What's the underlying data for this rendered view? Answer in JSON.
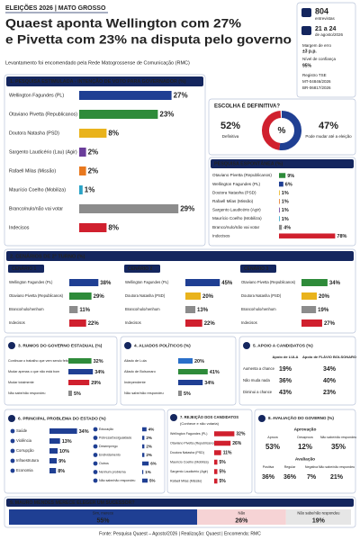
{
  "header": {
    "tag": "ELEIÇÕES 2026 | MATO GROSSO",
    "title_lines": [
      "Quaest aponta Wellington com 27%",
      "e Pivetta com 23% na disputa pelo governo"
    ],
    "subtitle": "Levantamento foi encomendado pela Rede Matogrossense de Comunicação (RMC)"
  },
  "sidebar": {
    "interviews": "804",
    "interviews_label": "entrevistas",
    "dates": "21 a 24",
    "dates_label": "de agosto/2026",
    "margin_label": "Margem de erro",
    "margin": "±3 p.p.",
    "confidence_label": "Nível de confiança",
    "confidence": "95%",
    "registry_label": "Registro TSE",
    "registry": [
      "MT-04846/2026",
      "BR-06817/2026"
    ]
  },
  "estimulada": {
    "title": "1. PESQUISA ESTIMULADA - INTENÇÃO DE VOTO PARA GOVERNADOR (%)",
    "items": [
      {
        "name": "Wellington Fagundes (PL)",
        "value": 27,
        "label": "27%",
        "color": "#1f3f93"
      },
      {
        "name": "Otaviano Pivetta (Republicanos)",
        "value": 23,
        "label": "23%",
        "color": "#2e8b3a"
      },
      {
        "name": "Doutora Natasha (PSD)",
        "value": 8,
        "label": "8%",
        "color": "#e9b31c"
      },
      {
        "name": "Sargento Laudicério (Lau) (Agir)",
        "value": 2,
        "label": "2%",
        "color": "#6a3d9a"
      },
      {
        "name": "Rafaell Milas (Missão)",
        "value": 2,
        "label": "2%",
        "color": "#e8781e"
      },
      {
        "name": "Maurício Coelho (Mobiliza)",
        "value": 1,
        "label": "1%",
        "color": "#2aa3c6"
      },
      {
        "name": "Branco/nulo/não vai votar",
        "value": 29,
        "label": "29%",
        "color": "#8c8c8c"
      },
      {
        "name": "Indecisos",
        "value": 8,
        "label": "8%",
        "color": "#d0202e"
      }
    ]
  },
  "definitiva": {
    "title": "ESCOLHA É DEFINITIVA?",
    "center": "%",
    "items": [
      {
        "name": "Definitiva",
        "value": 52,
        "label": "52%",
        "color": "#1f3f93"
      },
      {
        "name": "Pode mudar até a eleição",
        "value": 47,
        "label": "47%",
        "color": "#d0202e"
      }
    ]
  },
  "espontanea": {
    "title": "PESQUISA ESPONTÂNEA (%)",
    "items": [
      {
        "name": "Otaviano Pivetta (Republicanos)",
        "value": 9,
        "label": "9%",
        "color": "#2e8b3a"
      },
      {
        "name": "Wellington Fagundes (PL)",
        "value": 6,
        "label": "6%",
        "color": "#1f3f93"
      },
      {
        "name": "Doutora Natasha (PSD)",
        "value": 1,
        "label": "1%",
        "color": "#e9b31c"
      },
      {
        "name": "Rafaell Milas (Missão)",
        "value": 1,
        "label": "1%",
        "color": "#e8781e"
      },
      {
        "name": "Sargento Laudicério (Agir)",
        "value": 1,
        "label": "1%",
        "color": "#6a3d9a"
      },
      {
        "name": "Maurício Coelho (Mobiliza)",
        "value": 1,
        "label": "1%",
        "color": "#2aa3c6"
      },
      {
        "name": "Branco/nulo/não vai votar",
        "value": 4,
        "label": "4%",
        "color": "#8c8c8c"
      },
      {
        "name": "Indecisos",
        "value": 78,
        "label": "78%",
        "color": "#d0202e"
      }
    ]
  },
  "segundo_turno": {
    "title": "2. CENÁRIOS DE 2º TURNO (%)",
    "scenarios": [
      {
        "title": "CENÁRIO 1",
        "items": [
          {
            "name": "Wellington Fagundes (PL)",
            "value": 38,
            "label": "38%",
            "color": "#1f3f93"
          },
          {
            "name": "Otaviano Pivetta (Republicanos)",
            "value": 29,
            "label": "29%",
            "color": "#2e8b3a"
          },
          {
            "name": "Branco/nulo/nenhum",
            "value": 11,
            "label": "11%",
            "color": "#8c8c8c"
          },
          {
            "name": "Indecisos",
            "value": 22,
            "label": "22%",
            "color": "#d0202e"
          }
        ]
      },
      {
        "title": "CENÁRIO 2",
        "items": [
          {
            "name": "Wellington Fagundes (PL)",
            "value": 45,
            "label": "45%",
            "color": "#1f3f93"
          },
          {
            "name": "Doutora Natasha (PSD)",
            "value": 20,
            "label": "20%",
            "color": "#e9b31c"
          },
          {
            "name": "Branco/nulo/nenhum",
            "value": 13,
            "label": "13%",
            "color": "#8c8c8c"
          },
          {
            "name": "Indecisos",
            "value": 22,
            "label": "22%",
            "color": "#d0202e"
          }
        ]
      },
      {
        "title": "CENÁRIO 3",
        "items": [
          {
            "name": "Otaviano Pivetta (Republicanos)",
            "value": 34,
            "label": "34%",
            "color": "#2e8b3a"
          },
          {
            "name": "Doutora Natasha (PSD)",
            "value": 20,
            "label": "20%",
            "color": "#e9b31c"
          },
          {
            "name": "Branco/nulo/nenhum",
            "value": 19,
            "label": "19%",
            "color": "#8c8c8c"
          },
          {
            "name": "Indecisos",
            "value": 27,
            "label": "27%",
            "color": "#d0202e"
          }
        ]
      }
    ]
  },
  "rumos": {
    "title": "3. RUMOS DO GOVERNO ESTADUAL (%)",
    "items": [
      {
        "name": "Continuar o trabalho que vem sendo feito",
        "value": 32,
        "label": "32%",
        "color": "#2e8b3a"
      },
      {
        "name": "Mudar apenas o que não está bom",
        "value": 34,
        "label": "34%",
        "color": "#1f3f93"
      },
      {
        "name": "Mudar totalmente",
        "value": 29,
        "label": "29%",
        "color": "#d0202e"
      },
      {
        "name": "Não sabe/não respondeu",
        "value": 5,
        "label": "5%",
        "color": "#8c8c8c"
      }
    ]
  },
  "aliados": {
    "title": "4. ALIADOS POLÍTICOS (%)",
    "items": [
      {
        "name": "Aliado de Lula",
        "value": 20,
        "label": "20%",
        "color": "#2a6fc9"
      },
      {
        "name": "Aliado de Bolsonaro",
        "value": 41,
        "label": "41%",
        "color": "#2e8b3a"
      },
      {
        "name": "Independente",
        "value": 34,
        "label": "34%",
        "color": "#1f3f93"
      },
      {
        "name": "Não sabe/não respondeu",
        "value": 5,
        "label": "5%",
        "color": "#8c8c8c"
      }
    ]
  },
  "apoio": {
    "title": "5. APOIO A CANDIDATOS (%)",
    "columns": [
      "Apoio de LULA",
      "Apoio de FLÁVIO BOLSONARO"
    ],
    "rows": [
      {
        "name": "Aumenta a chance",
        "color": "#1f3f93",
        "cells": [
          "19%",
          "34%"
        ]
      },
      {
        "name": "Não muda nada",
        "color": "#2e8b3a",
        "cells": [
          "36%",
          "40%"
        ]
      },
      {
        "name": "Diminui a chance",
        "color": "#d0202e",
        "cells": [
          "43%",
          "23%"
        ]
      }
    ]
  },
  "problema": {
    "title": "6. PRINCIPAL PROBLEMA DO ESTADO (%)",
    "color": "#1f3f93",
    "items": [
      {
        "name": "Saúde",
        "value": 34,
        "label": "34%"
      },
      {
        "name": "Violência",
        "value": 13,
        "label": "13%"
      },
      {
        "name": "Corrupção",
        "value": 10,
        "label": "10%"
      },
      {
        "name": "Infraestrutura",
        "value": 9,
        "label": "9%"
      },
      {
        "name": "Economia",
        "value": 8,
        "label": "8%"
      },
      {
        "name": "Educação",
        "value": 4,
        "label": "4%"
      },
      {
        "name": "Pobreza/Desigualdade",
        "value": 2,
        "label": "2%"
      },
      {
        "name": "Desemprego",
        "value": 2,
        "label": "2%"
      },
      {
        "name": "Endividamento",
        "value": 2,
        "label": "2%"
      },
      {
        "name": "Outros",
        "value": 6,
        "label": "6%"
      },
      {
        "name": "Nenhum problema",
        "value": 1,
        "label": "1%"
      },
      {
        "name": "Não sabe/não respondeu",
        "value": 5,
        "label": "5%"
      }
    ]
  },
  "rejeicao": {
    "title": "7. REJEIÇÃO DOS CANDIDATOS",
    "subtitle": "(Conhece e não votaria)",
    "color": "#d0202e",
    "items": [
      {
        "name": "Wellington Fagundes (PL)",
        "value": 32,
        "label": "32%"
      },
      {
        "name": "Otaviano Pivetta (Republicanos)",
        "value": 26,
        "label": "26%"
      },
      {
        "name": "Doutora Natasha (PSD)",
        "value": 11,
        "label": "11%"
      },
      {
        "name": "Maurício Coelho (Mobiliza)",
        "value": 5,
        "label": "5%"
      },
      {
        "name": "Sargento Laudicério (Agir)",
        "value": 5,
        "label": "5%"
      },
      {
        "name": "Rafaell Milas (Missão)",
        "value": 5,
        "label": "5%"
      }
    ]
  },
  "avaliacao": {
    "title": "8. AVALIAÇÃO DO GOVERNO (%)",
    "groups": [
      {
        "title": "Aprovação",
        "items": [
          {
            "name": "Aprova",
            "label": "53%",
            "color": "#1f3f93"
          },
          {
            "name": "Desaprova",
            "label": "12%",
            "color": "#d0202e"
          },
          {
            "name": "Não sabe/não respondeu",
            "label": "35%",
            "color": "#666666"
          }
        ]
      },
      {
        "title": "Avaliação",
        "items": [
          {
            "name": "Positiva",
            "label": "36%",
            "color": "#1f3f93"
          },
          {
            "name": "Regular",
            "label": "36%",
            "color": "#e8a01e"
          },
          {
            "name": "Negativa",
            "label": "7%",
            "color": "#d0202e"
          },
          {
            "name": "Não sabe/não respondeu",
            "label": "21%",
            "color": "#666666"
          }
        ]
      }
    ]
  },
  "sucessor": {
    "title": "9. MAURO MENDES MERECE ELEGER UM SUCESSOR?",
    "items": [
      {
        "name": "Sim, merece",
        "value": 55,
        "label": "55%",
        "color": "#1f3f93",
        "text_color": "#ffffff"
      },
      {
        "name": "Não",
        "value": 26,
        "label": "26%",
        "color": "#f6d3d5",
        "text_color": "#d0202e"
      },
      {
        "name": "Não sabe/não respondeu",
        "value": 19,
        "label": "19%",
        "color": "#e6e6e6",
        "text_color": "#444444"
      }
    ]
  },
  "footer": "Fonte: Pesquisa Quaest – Agosto/2026 | Realização: Quaest | Encomenda: RMC"
}
